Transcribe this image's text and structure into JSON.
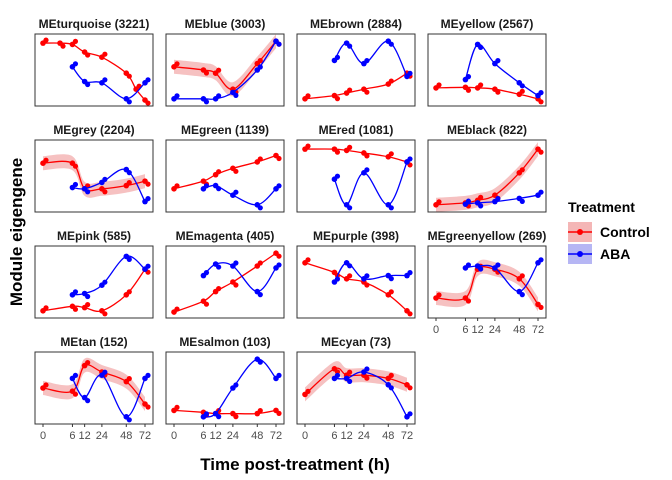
{
  "xlabel": "Time post-treatment (h)",
  "ylabel": "Module eigengene",
  "legend": {
    "title": "Treatment",
    "placement": "right",
    "entries": [
      {
        "label": "Control",
        "color": "#ff0000",
        "band": "#f4b6b6"
      },
      {
        "label": "ABA",
        "color": "#0000ff",
        "band": "#b6b6f4"
      }
    ]
  },
  "chart_data": {
    "type": "line",
    "facets": 15,
    "x_ticks": [
      0,
      6,
      12,
      24,
      48,
      72
    ],
    "x_scale": "sqrt",
    "panels": [
      {
        "title": "MEturquoise (3221)",
        "series": [
          {
            "name": "Control",
            "band": false,
            "points": [
              [
                0,
                0.92
              ],
              [
                2,
                0.92
              ],
              [
                6,
                0.9
              ],
              [
                12,
                0.78
              ],
              [
                24,
                0.7
              ],
              [
                48,
                0.45
              ],
              [
                60,
                0.2
              ],
              [
                72,
                0.03
              ]
            ]
          },
          {
            "name": "ABA",
            "points": [
              [
                6,
                0.55
              ],
              [
                12,
                0.32
              ],
              [
                24,
                0.3
              ],
              [
                48,
                0.05
              ],
              [
                72,
                0.3
              ]
            ]
          }
        ]
      },
      {
        "title": "MEblue (3003)",
        "series": [
          {
            "name": "Control",
            "band": true,
            "points": [
              [
                0,
                0.55
              ],
              [
                6,
                0.5
              ],
              [
                12,
                0.45
              ],
              [
                24,
                0.2
              ],
              [
                48,
                0.6
              ],
              [
                72,
                0.95
              ]
            ]
          },
          {
            "name": "ABA",
            "points": [
              [
                0,
                0.05
              ],
              [
                6,
                0.05
              ],
              [
                12,
                0.05
              ],
              [
                24,
                0.15
              ],
              [
                48,
                0.5
              ],
              [
                72,
                0.95
              ]
            ]
          }
        ]
      },
      {
        "title": "MEbrown (2884)",
        "series": [
          {
            "name": "Control",
            "points": [
              [
                0,
                0.05
              ],
              [
                6,
                0.1
              ],
              [
                12,
                0.14
              ],
              [
                24,
                0.2
              ],
              [
                48,
                0.28
              ],
              [
                72,
                0.45
              ]
            ]
          },
          {
            "name": "ABA",
            "points": [
              [
                6,
                0.65
              ],
              [
                12,
                0.92
              ],
              [
                24,
                0.6
              ],
              [
                48,
                0.95
              ],
              [
                72,
                0.4
              ]
            ]
          }
        ]
      },
      {
        "title": "MEyellow (2567)",
        "series": [
          {
            "name": "Control",
            "points": [
              [
                0,
                0.22
              ],
              [
                6,
                0.23
              ],
              [
                12,
                0.22
              ],
              [
                24,
                0.2
              ],
              [
                48,
                0.12
              ],
              [
                72,
                0.05
              ]
            ]
          },
          {
            "name": "ABA",
            "points": [
              [
                6,
                0.35
              ],
              [
                12,
                0.9
              ],
              [
                24,
                0.6
              ],
              [
                48,
                0.3
              ],
              [
                72,
                0.1
              ]
            ]
          }
        ]
      },
      {
        "title": "MEgrey (2204)",
        "series": [
          {
            "name": "Control",
            "band": true,
            "points": [
              [
                0,
                0.7
              ],
              [
                6,
                0.7
              ],
              [
                12,
                0.3
              ],
              [
                24,
                0.3
              ],
              [
                48,
                0.35
              ],
              [
                72,
                0.42
              ]
            ]
          },
          {
            "name": "ABA",
            "points": [
              [
                6,
                0.32
              ],
              [
                12,
                0.3
              ],
              [
                24,
                0.4
              ],
              [
                48,
                0.6
              ],
              [
                72,
                0.1
              ]
            ]
          }
        ]
      },
      {
        "title": "MEgreen (1139)",
        "series": [
          {
            "name": "Control",
            "points": [
              [
                0,
                0.3
              ],
              [
                6,
                0.42
              ],
              [
                12,
                0.52
              ],
              [
                24,
                0.62
              ],
              [
                48,
                0.72
              ],
              [
                72,
                0.82
              ]
            ]
          },
          {
            "name": "ABA",
            "points": [
              [
                6,
                0.3
              ],
              [
                12,
                0.35
              ],
              [
                24,
                0.2
              ],
              [
                48,
                0.05
              ],
              [
                72,
                0.3
              ]
            ]
          }
        ]
      },
      {
        "title": "MEred (1081)",
        "series": [
          {
            "name": "Control",
            "points": [
              [
                0,
                0.92
              ],
              [
                6,
                0.92
              ],
              [
                12,
                0.9
              ],
              [
                24,
                0.86
              ],
              [
                48,
                0.8
              ],
              [
                72,
                0.72
              ]
            ]
          },
          {
            "name": "ABA",
            "points": [
              [
                6,
                0.45
              ],
              [
                12,
                0.05
              ],
              [
                24,
                0.55
              ],
              [
                48,
                0.05
              ],
              [
                72,
                0.72
              ]
            ]
          }
        ]
      },
      {
        "title": "MEblack (822)",
        "series": [
          {
            "name": "Control",
            "band": true,
            "points": [
              [
                0,
                0.05
              ],
              [
                6,
                0.08
              ],
              [
                12,
                0.12
              ],
              [
                24,
                0.2
              ],
              [
                48,
                0.55
              ],
              [
                72,
                0.92
              ]
            ]
          },
          {
            "name": "ABA",
            "points": [
              [
                6,
                0.06
              ],
              [
                12,
                0.08
              ],
              [
                24,
                0.1
              ],
              [
                48,
                0.15
              ],
              [
                72,
                0.2
              ]
            ]
          }
        ]
      },
      {
        "title": "MEpink (585)",
        "series": [
          {
            "name": "Control",
            "points": [
              [
                0,
                0.05
              ],
              [
                6,
                0.12
              ],
              [
                12,
                0.1
              ],
              [
                24,
                0.05
              ],
              [
                48,
                0.3
              ],
              [
                72,
                0.7
              ]
            ]
          },
          {
            "name": "ABA",
            "points": [
              [
                6,
                0.3
              ],
              [
                12,
                0.32
              ],
              [
                24,
                0.45
              ],
              [
                48,
                0.9
              ],
              [
                72,
                0.7
              ]
            ]
          }
        ]
      },
      {
        "title": "MEmagenta (405)",
        "series": [
          {
            "name": "Control",
            "points": [
              [
                0,
                0.03
              ],
              [
                6,
                0.2
              ],
              [
                12,
                0.35
              ],
              [
                24,
                0.5
              ],
              [
                48,
                0.75
              ],
              [
                72,
                0.95
              ]
            ]
          },
          {
            "name": "ABA",
            "points": [
              [
                6,
                0.6
              ],
              [
                12,
                0.78
              ],
              [
                24,
                0.75
              ],
              [
                48,
                0.35
              ],
              [
                72,
                0.72
              ]
            ]
          }
        ]
      },
      {
        "title": "MEpurple (398)",
        "series": [
          {
            "name": "Control",
            "points": [
              [
                0,
                0.8
              ],
              [
                6,
                0.65
              ],
              [
                12,
                0.55
              ],
              [
                24,
                0.5
              ],
              [
                48,
                0.3
              ],
              [
                72,
                0.05
              ]
            ]
          },
          {
            "name": "ABA",
            "points": [
              [
                6,
                0.5
              ],
              [
                12,
                0.8
              ],
              [
                24,
                0.55
              ],
              [
                48,
                0.6
              ],
              [
                72,
                0.6
              ]
            ]
          }
        ]
      },
      {
        "title": "MEgreenyellow (269)",
        "series": [
          {
            "name": "Control",
            "band": true,
            "points": [
              [
                0,
                0.25
              ],
              [
                6,
                0.25
              ],
              [
                12,
                0.7
              ],
              [
                24,
                0.7
              ],
              [
                48,
                0.55
              ],
              [
                72,
                0.15
              ]
            ]
          },
          {
            "name": "ABA",
            "points": [
              [
                6,
                0.72
              ],
              [
                12,
                0.75
              ],
              [
                24,
                0.72
              ],
              [
                48,
                0.35
              ],
              [
                72,
                0.8
              ]
            ]
          }
        ]
      },
      {
        "title": "MEtan (152)",
        "series": [
          {
            "name": "Control",
            "band": true,
            "points": [
              [
                0,
                0.5
              ],
              [
                6,
                0.45
              ],
              [
                12,
                0.85
              ],
              [
                24,
                0.75
              ],
              [
                48,
                0.6
              ],
              [
                72,
                0.25
              ]
            ]
          },
          {
            "name": "ABA",
            "points": [
              [
                6,
                0.65
              ],
              [
                12,
                0.35
              ],
              [
                24,
                0.7
              ],
              [
                48,
                0.05
              ],
              [
                72,
                0.65
              ]
            ]
          }
        ]
      },
      {
        "title": "MEsalmon (103)",
        "series": [
          {
            "name": "Control",
            "points": [
              [
                0,
                0.15
              ],
              [
                6,
                0.12
              ],
              [
                12,
                0.1
              ],
              [
                24,
                0.1
              ],
              [
                48,
                0.1
              ],
              [
                72,
                0.15
              ]
            ]
          },
          {
            "name": "ABA",
            "points": [
              [
                6,
                0.05
              ],
              [
                12,
                0.1
              ],
              [
                24,
                0.5
              ],
              [
                48,
                0.95
              ],
              [
                72,
                0.65
              ]
            ]
          }
        ]
      },
      {
        "title": "MEcyan (73)",
        "series": [
          {
            "name": "Control",
            "band": true,
            "points": [
              [
                0,
                0.4
              ],
              [
                6,
                0.8
              ],
              [
                12,
                0.7
              ],
              [
                24,
                0.7
              ],
              [
                48,
                0.65
              ],
              [
                72,
                0.55
              ]
            ]
          },
          {
            "name": "ABA",
            "points": [
              [
                6,
                0.65
              ],
              [
                12,
                0.65
              ],
              [
                24,
                0.75
              ],
              [
                48,
                0.55
              ],
              [
                72,
                0.05
              ]
            ]
          }
        ]
      }
    ]
  }
}
